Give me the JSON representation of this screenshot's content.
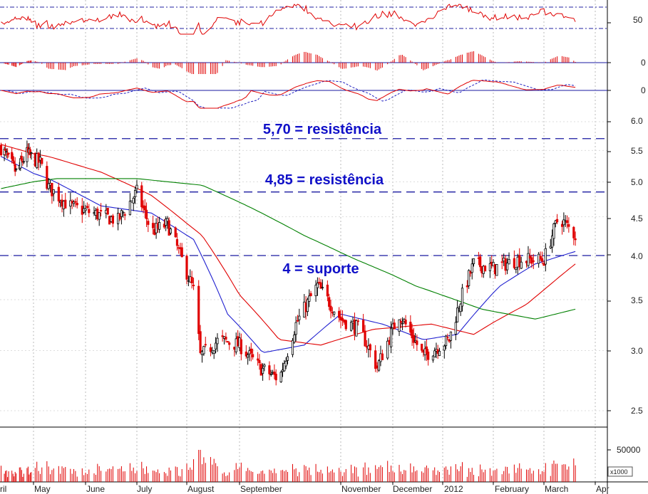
{
  "chart_data": {
    "type": "candlestick",
    "title": "",
    "xlabel": "",
    "ylabel": "",
    "log_scale": true,
    "ylim": [
      2.3,
      6.4
    ],
    "grid": true,
    "x_axis_labels": [
      "ril",
      "May",
      "June",
      "July",
      "August",
      "September",
      "November",
      "December",
      "2012",
      "February",
      "March",
      "Apr"
    ],
    "y_ticks": [
      "6.0",
      "5.5",
      "5.0",
      "4.5",
      "4.0",
      "3.5",
      "3.0",
      "2.5"
    ],
    "annotations": [
      {
        "text": "5,70 = resistência",
        "level": 5.7
      },
      {
        "text": "4,85 = resistência",
        "level": 4.85
      },
      {
        "text": "4 = suporte",
        "level": 4.0
      }
    ],
    "indicator_panels": [
      {
        "label": "50",
        "colors": [
          "#e00000",
          "#2020c0"
        ]
      },
      {
        "label": "0",
        "type": "histogram",
        "colors": [
          "#e00000"
        ]
      },
      {
        "label": "0",
        "type": "macd",
        "colors": [
          "#e00000",
          "#2020c0"
        ]
      }
    ],
    "volume_panel": {
      "tick_label": "50000",
      "unit_label": "x1000",
      "color": "#e00000"
    },
    "price_anchors": [
      {
        "date": "2011-04-01",
        "price": 5.55
      },
      {
        "date": "2011-04-15",
        "price": 5.15
      },
      {
        "date": "2011-04-25",
        "price": 5.45
      },
      {
        "date": "2011-05-05",
        "price": 5.3
      },
      {
        "date": "2011-05-10",
        "price": 4.92
      },
      {
        "date": "2011-05-22",
        "price": 4.65
      },
      {
        "date": "2011-06-05",
        "price": 4.55
      },
      {
        "date": "2011-06-20",
        "price": 4.45
      },
      {
        "date": "2011-07-01",
        "price": 4.85
      },
      {
        "date": "2011-07-10",
        "price": 4.3
      },
      {
        "date": "2011-07-20",
        "price": 4.4
      },
      {
        "date": "2011-07-28",
        "price": 4.0
      },
      {
        "date": "2011-08-05",
        "price": 3.6
      },
      {
        "date": "2011-08-09",
        "price": 2.95
      },
      {
        "date": "2011-08-20",
        "price": 3.1
      },
      {
        "date": "2011-09-01",
        "price": 3.05
      },
      {
        "date": "2011-09-13",
        "price": 2.85
      },
      {
        "date": "2011-09-25",
        "price": 2.75
      },
      {
        "date": "2011-10-05",
        "price": 3.25
      },
      {
        "date": "2011-10-18",
        "price": 3.65
      },
      {
        "date": "2011-11-01",
        "price": 3.3
      },
      {
        "date": "2011-11-12",
        "price": 3.2
      },
      {
        "date": "2011-11-22",
        "price": 2.85
      },
      {
        "date": "2011-12-05",
        "price": 3.35
      },
      {
        "date": "2011-12-20",
        "price": 2.95
      },
      {
        "date": "2012-01-05",
        "price": 3.1
      },
      {
        "date": "2012-01-12",
        "price": 3.5
      },
      {
        "date": "2012-01-20",
        "price": 3.9
      },
      {
        "date": "2012-02-01",
        "price": 3.85
      },
      {
        "date": "2012-02-15",
        "price": 3.95
      },
      {
        "date": "2012-03-01",
        "price": 3.95
      },
      {
        "date": "2012-03-10",
        "price": 4.5
      },
      {
        "date": "2012-03-20",
        "price": 4.25
      }
    ],
    "series": [
      {
        "name": "",
        "kind": "moving_average",
        "color": "#2020d0",
        "points": [
          {
            "date": "2011-04-01",
            "value": 5.4
          },
          {
            "date": "2011-05-10",
            "value": 5.05
          },
          {
            "date": "2011-06-10",
            "value": 4.65
          },
          {
            "date": "2011-07-10",
            "value": 4.55
          },
          {
            "date": "2011-08-05",
            "value": 4.2
          },
          {
            "date": "2011-08-25",
            "value": 3.35
          },
          {
            "date": "2011-09-15",
            "value": 2.98
          },
          {
            "date": "2011-10-10",
            "value": 3.05
          },
          {
            "date": "2011-11-01",
            "value": 3.35
          },
          {
            "date": "2011-11-25",
            "value": 3.25
          },
          {
            "date": "2011-12-20",
            "value": 3.1
          },
          {
            "date": "2012-01-10",
            "value": 3.15
          },
          {
            "date": "2012-02-05",
            "value": 3.65
          },
          {
            "date": "2012-02-25",
            "value": 3.9
          },
          {
            "date": "2012-03-20",
            "value": 4.05
          }
        ]
      },
      {
        "name": "",
        "kind": "moving_average",
        "color": "#e00000",
        "points": [
          {
            "date": "2011-04-01",
            "value": 5.6
          },
          {
            "date": "2011-05-10",
            "value": 5.4
          },
          {
            "date": "2011-06-10",
            "value": 5.15
          },
          {
            "date": "2011-07-10",
            "value": 4.8
          },
          {
            "date": "2011-08-10",
            "value": 4.25
          },
          {
            "date": "2011-09-01",
            "value": 3.55
          },
          {
            "date": "2011-09-25",
            "value": 3.1
          },
          {
            "date": "2011-10-20",
            "value": 3.05
          },
          {
            "date": "2011-11-20",
            "value": 3.2
          },
          {
            "date": "2011-12-25",
            "value": 3.25
          },
          {
            "date": "2012-01-20",
            "value": 3.15
          },
          {
            "date": "2012-02-20",
            "value": 3.45
          },
          {
            "date": "2012-03-20",
            "value": 3.9
          }
        ]
      },
      {
        "name": "",
        "kind": "moving_average",
        "color": "#008000",
        "points": [
          {
            "date": "2011-04-01",
            "value": 4.9
          },
          {
            "date": "2011-05-15",
            "value": 5.05
          },
          {
            "date": "2011-07-01",
            "value": 5.05
          },
          {
            "date": "2011-08-10",
            "value": 4.95
          },
          {
            "date": "2011-09-10",
            "value": 4.6
          },
          {
            "date": "2011-10-10",
            "value": 4.25
          },
          {
            "date": "2011-11-10",
            "value": 3.95
          },
          {
            "date": "2011-12-15",
            "value": 3.65
          },
          {
            "date": "2012-01-25",
            "value": 3.4
          },
          {
            "date": "2012-02-25",
            "value": 3.3
          },
          {
            "date": "2012-03-20",
            "value": 3.4
          }
        ]
      }
    ]
  },
  "colors": {
    "candle_up": "#000000",
    "candle_down": "#e00000",
    "dashed_level": "#1a1aa0",
    "grid": "#bbbbbb",
    "annotation": "#1010c8"
  }
}
